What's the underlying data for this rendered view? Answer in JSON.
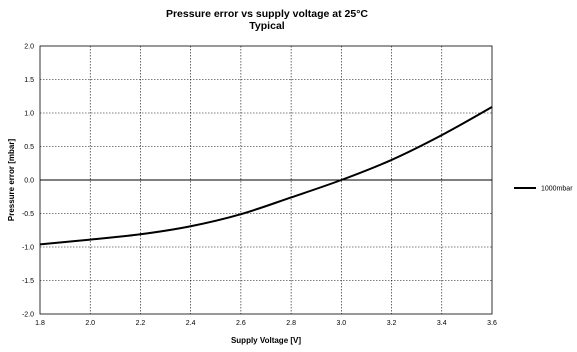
{
  "chart_data": {
    "type": "line",
    "title": "Pressure error vs supply voltage at 25°C",
    "subtitle": "Typical",
    "xlabel": "Supply Voltage [V]",
    "ylabel": "Pressure error [mbar]",
    "xlim": [
      1.8,
      3.6
    ],
    "ylim": [
      -2.0,
      2.0
    ],
    "x_ticks": [
      "1.8",
      "2.0",
      "2.2",
      "2.4",
      "2.6",
      "2.8",
      "3.0",
      "3.2",
      "3.4",
      "3.6"
    ],
    "y_ticks": [
      "2.0",
      "1.5",
      "1.0",
      "0.5",
      "0.0",
      "-0.5",
      "-1.0",
      "-1.5",
      "-2.0"
    ],
    "grid": true,
    "legend_position": "right",
    "series": [
      {
        "name": "1000mbar",
        "color": "#000000",
        "x": [
          1.8,
          2.0,
          2.2,
          2.4,
          2.6,
          2.8,
          3.0,
          3.2,
          3.4,
          3.6
        ],
        "y": [
          -0.96,
          -0.89,
          -0.81,
          -0.69,
          -0.51,
          -0.26,
          0.0,
          0.3,
          0.67,
          1.09
        ]
      }
    ]
  }
}
